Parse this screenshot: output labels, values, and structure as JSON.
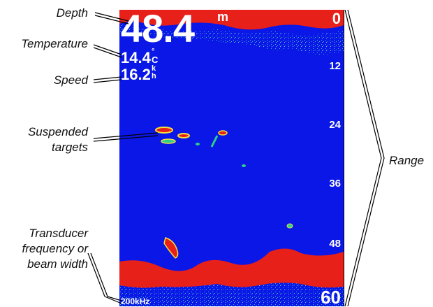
{
  "callouts": {
    "depth": "Depth",
    "temperature": "Temperature",
    "speed": "Speed",
    "targets_line1": "Suspended",
    "targets_line2": "targets",
    "transducer_line1": "Transducer",
    "transducer_line2": "frequency or",
    "transducer_line3": "beam width",
    "range": "Range"
  },
  "display": {
    "depth_value": "48.4",
    "depth_unit": "m",
    "temperature_value": "14.4",
    "temperature_unit_top": "°",
    "temperature_unit_bottom": "C",
    "speed_value": "16.2",
    "speed_unit_top": "k",
    "speed_unit_bottom": "h",
    "frequency": "200kHz",
    "scale_ticks": [
      "0",
      "12",
      "24",
      "36",
      "48",
      "60"
    ]
  },
  "colors": {
    "water": "#0a17e6",
    "bottom_return": "#e8201a",
    "surface_clutter": "#e8201a",
    "target": "#f4e23c"
  }
}
